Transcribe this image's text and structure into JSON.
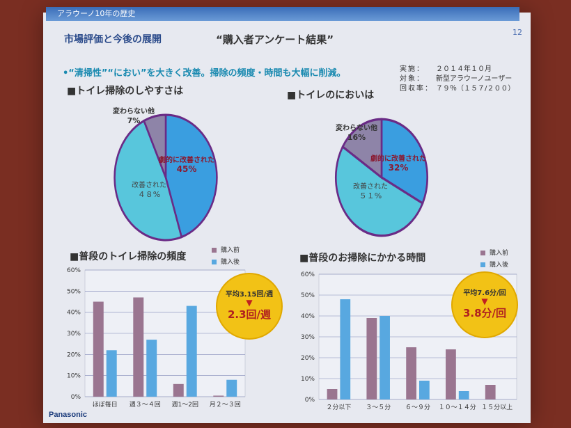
{
  "header": {
    "bar_title": "アラウーノ10年の歴史",
    "page_number": "12",
    "section_title": "市場評価と今後の展開",
    "survey_title": "“購入者アンケート結果”",
    "headline": "•“清掃性”“におい”を大きく改善。掃除の頻度・時間も大幅に削減。"
  },
  "survey_info": {
    "rows": [
      {
        "key": "実施：",
        "value": "２０１４年１０月"
      },
      {
        "key": "対象：",
        "value": "新型アラウーノユーザー"
      },
      {
        "key": "回収率：",
        "value": "７９％（１５７/２００）"
      }
    ]
  },
  "brand": "Panasonic",
  "colors": {
    "before": "#9a7590",
    "after": "#58a8e0",
    "pie_blue": "#3a9ee0",
    "pie_cyan": "#58c6dc",
    "pie_mauve": "#8e84a8",
    "pie_border": "#6a2b86"
  },
  "chart_data": [
    {
      "type": "pie",
      "title": "■トイレ掃除のしやすさは",
      "slices": [
        {
          "label": "劇的に改善された",
          "value": 45,
          "text": "45%",
          "color": "#3a9ee0"
        },
        {
          "label": "改善された",
          "value": 48,
          "text": "４８%",
          "color": "#58c6dc"
        },
        {
          "label": "変わらない他",
          "value": 7,
          "text": "7%",
          "color": "#8e84a8"
        }
      ]
    },
    {
      "type": "pie",
      "title": "■トイレのにおいは",
      "slices": [
        {
          "label": "劇的に改善された",
          "value": 32,
          "text": "32%",
          "color": "#3a9ee0"
        },
        {
          "label": "改善された",
          "value": 51,
          "text": "５１%",
          "color": "#58c6dc"
        },
        {
          "label": "変わらない他",
          "value": 16,
          "text": "16%",
          "color": "#8e84a8"
        }
      ]
    },
    {
      "type": "bar",
      "title": "■普段のトイレ掃除の頻度",
      "categories": [
        "ほぼ毎日",
        "週３～４回",
        "週1～2回",
        "月２～３回"
      ],
      "series": [
        {
          "name": "購入前",
          "values": [
            45,
            47,
            6,
            0.5
          ]
        },
        {
          "name": "購入後",
          "values": [
            22,
            27,
            43,
            8
          ]
        }
      ],
      "ylim": [
        0,
        60
      ],
      "yticks": [
        "0%",
        "10%",
        "20%",
        "30%",
        "40%",
        "50%",
        "60%"
      ],
      "badge": {
        "before": "平均3.15回/週",
        "after": "2.3回/週"
      }
    },
    {
      "type": "bar",
      "title": "■普段のお掃除にかかる時間",
      "categories": [
        "２分以下",
        "３～５分",
        "６～９分",
        "１０～１４分",
        "１５分以上"
      ],
      "series": [
        {
          "name": "購入前",
          "values": [
            5,
            39,
            25,
            24,
            7
          ]
        },
        {
          "name": "購入後",
          "values": [
            48,
            40,
            9,
            4,
            0
          ]
        }
      ],
      "ylim": [
        0,
        60
      ],
      "yticks": [
        "0%",
        "10%",
        "20%",
        "30%",
        "40%",
        "50%",
        "60%"
      ],
      "badge": {
        "before": "平均7.6分/回",
        "after": "3.8分/回"
      }
    }
  ]
}
